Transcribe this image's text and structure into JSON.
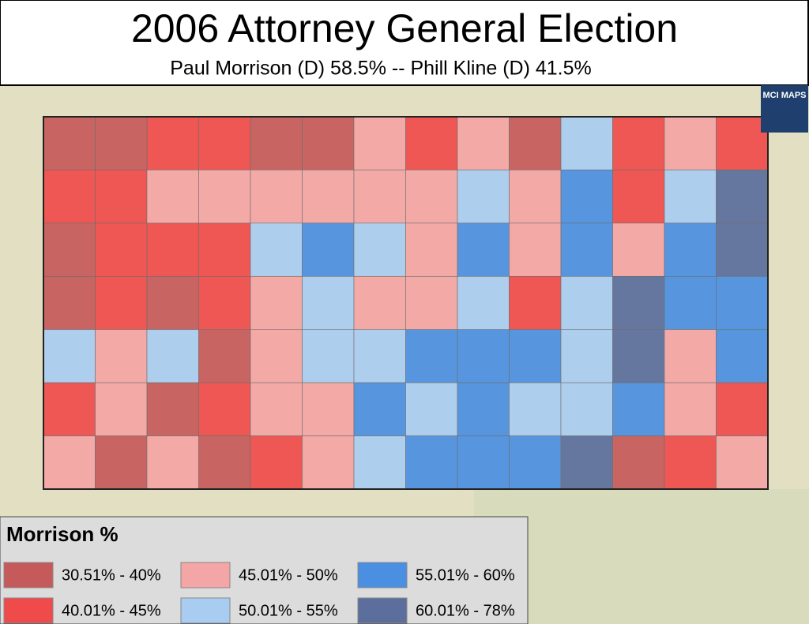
{
  "title": "2006 Attorney General Election",
  "subtitle": "Paul Morrison (D) 58.5% -- Phill Kline (D) 41.5%",
  "logo": "MCI MAPS",
  "legend": {
    "title": "Morrison %",
    "items": [
      {
        "label": "30.51% - 40%",
        "color": "#c65a5a"
      },
      {
        "label": "40.01% - 45%",
        "color": "#ef4b4b"
      },
      {
        "label": "45.01% - 50%",
        "color": "#f4a5a5"
      },
      {
        "label": "50.01% - 55%",
        "color": "#a9ccf1"
      },
      {
        "label": "55.01% - 60%",
        "color": "#4b8fe2"
      },
      {
        "label": "60.01% - 78%",
        "color": "#5b6e9c"
      }
    ]
  },
  "map": {
    "counties": [
      [
        0,
        0,
        1,
        1,
        0,
        0,
        2,
        1,
        2,
        0,
        3,
        1,
        2,
        1
      ],
      [
        1,
        1,
        2,
        2,
        2,
        2,
        2,
        2,
        3,
        2,
        4,
        1,
        3,
        5
      ],
      [
        0,
        1,
        1,
        1,
        3,
        4,
        3,
        2,
        4,
        2,
        4,
        2,
        4,
        5
      ],
      [
        0,
        1,
        0,
        1,
        2,
        3,
        2,
        2,
        3,
        1,
        3,
        5,
        4,
        4
      ],
      [
        3,
        2,
        3,
        0,
        2,
        3,
        3,
        4,
        4,
        4,
        3,
        5,
        2,
        4
      ],
      [
        1,
        2,
        0,
        1,
        2,
        2,
        4,
        3,
        4,
        3,
        3,
        4,
        2,
        1
      ],
      [
        2,
        0,
        2,
        0,
        1,
        2,
        3,
        4,
        4,
        4,
        5,
        0,
        1,
        2
      ]
    ]
  }
}
